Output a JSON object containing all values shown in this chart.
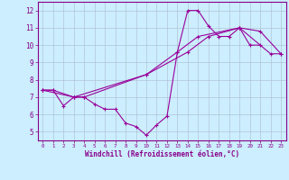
{
  "xlabel": "Windchill (Refroidissement éolien,°C)",
  "background_color": "#cceeff",
  "grid_color": "#aabbcc",
  "line_color": "#990099",
  "xlim": [
    -0.5,
    23.5
  ],
  "ylim": [
    4.5,
    12.5
  ],
  "line1_x": [
    0,
    1,
    2,
    3,
    4,
    5,
    6,
    7,
    8,
    9,
    10,
    11,
    12,
    13,
    14,
    15,
    16,
    17,
    18,
    19,
    20,
    21
  ],
  "line1_y": [
    7.4,
    7.4,
    6.5,
    7.0,
    7.0,
    6.6,
    6.3,
    6.3,
    5.5,
    5.3,
    4.8,
    5.4,
    5.9,
    9.6,
    12.0,
    12.0,
    11.1,
    10.5,
    10.5,
    11.0,
    10.0,
    10.0
  ],
  "line2_x": [
    0,
    1,
    3,
    4,
    10,
    13,
    15,
    19,
    22,
    23
  ],
  "line2_y": [
    7.4,
    7.4,
    7.0,
    7.0,
    8.3,
    9.6,
    10.5,
    11.0,
    9.5,
    9.5
  ],
  "line3_x": [
    0,
    3,
    10,
    14,
    16,
    19,
    21,
    23
  ],
  "line3_y": [
    7.4,
    7.0,
    8.3,
    9.6,
    10.5,
    11.0,
    10.8,
    9.5
  ]
}
